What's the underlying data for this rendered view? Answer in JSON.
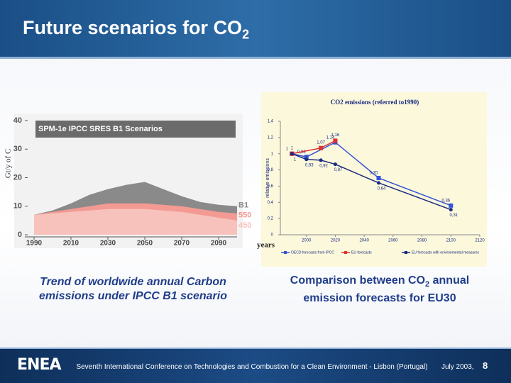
{
  "header": {
    "title": "Future scenarios for CO",
    "title_subscript": "2"
  },
  "chart_data": [
    {
      "type": "area",
      "title": "SPM-1e IPCC SRES B1 Scenarios",
      "ylabel": "Gt/y of C",
      "x": [
        1990,
        2000,
        2010,
        2020,
        2030,
        2040,
        2050,
        2060,
        2070,
        2080,
        2090,
        2100
      ],
      "series": [
        {
          "name": "B1",
          "color": "#8a8a8a",
          "values": [
            7,
            8.5,
            11,
            14,
            16,
            17.5,
            18.5,
            16,
            13.5,
            11.5,
            10.5,
            10
          ]
        },
        {
          "name": "550",
          "color": "#f39a92",
          "values": [
            7,
            8,
            9,
            10,
            11,
            11,
            11,
            10.5,
            10,
            9,
            8,
            7.5
          ]
        },
        {
          "name": "450",
          "color": "#f7c2bc",
          "values": [
            7,
            7.5,
            8,
            8.5,
            9,
            9,
            9,
            8.5,
            8,
            7,
            6,
            5
          ]
        }
      ],
      "xlim": [
        1985,
        2100
      ],
      "xticks": [
        1990,
        2010,
        2030,
        2050,
        2070,
        2090
      ],
      "ylim": [
        0,
        40
      ],
      "yticks": [
        0,
        10,
        20,
        30,
        40
      ]
    },
    {
      "type": "line",
      "title": "CO2 emissions (referred to1990)",
      "ylabel": "relative emissions",
      "xlabel": "years",
      "series": [
        {
          "name": "OECD forecasts from IPCC",
          "color": "#3552d6",
          "marker": "square",
          "x": [
            1990,
            2000,
            2020,
            2050,
            2100
          ],
          "values": [
            1,
            0.96,
            1.14,
            0.7,
            0.36
          ],
          "value_labels": [
            "1",
            "0,96",
            "1,14",
            "0,70",
            "0,36"
          ]
        },
        {
          "name": "EU forecasts",
          "color": "#e03030",
          "marker": "square",
          "x": [
            1990,
            2010,
            2020
          ],
          "values": [
            1,
            1.07,
            1.16
          ],
          "value_labels": [
            "1",
            "1,07",
            "1,16"
          ]
        },
        {
          "name": "EU forecasts with environmental measures",
          "color": "#1a2a80",
          "marker": "circle",
          "x": [
            1990,
            2000,
            2010,
            2020,
            2050,
            2100
          ],
          "values": [
            1,
            0.93,
            0.92,
            0.87,
            0.64,
            0.31
          ],
          "value_labels": [
            "1",
            "0,93",
            "0,92",
            "0,87",
            "0,64",
            "0,31"
          ]
        }
      ],
      "xlim": [
        1980,
        2120
      ],
      "xticks": [
        2000,
        2020,
        2040,
        2060,
        2080,
        2100,
        2120
      ],
      "ylim": [
        0,
        1.4
      ],
      "yticks": [
        0,
        {
          "value": 0.2,
          "label": "0,2"
        },
        {
          "value": 0.4,
          "label": "0,4"
        },
        {
          "value": 0.6,
          "label": "0,6"
        },
        {
          "value": 0.8,
          "label": "0,8"
        },
        1,
        {
          "value": 1.2,
          "label": "1,2"
        },
        {
          "value": 1.4,
          "label": "1,4"
        }
      ]
    }
  ],
  "captions": [
    {
      "text": "Trend of worldwide annual Carbon emissions under IPCC B1 scenario"
    },
    {
      "text": "Comparison between CO",
      "subscript": "2",
      "text_after": " annual emission forecasts for EU30"
    }
  ],
  "footer": {
    "logo": "ENEA",
    "conference": "Seventh International Conference on Technologies and Combustion for a Clean Environment - Lisbon (Portugal)",
    "date": "July 2003,",
    "page": "8"
  }
}
